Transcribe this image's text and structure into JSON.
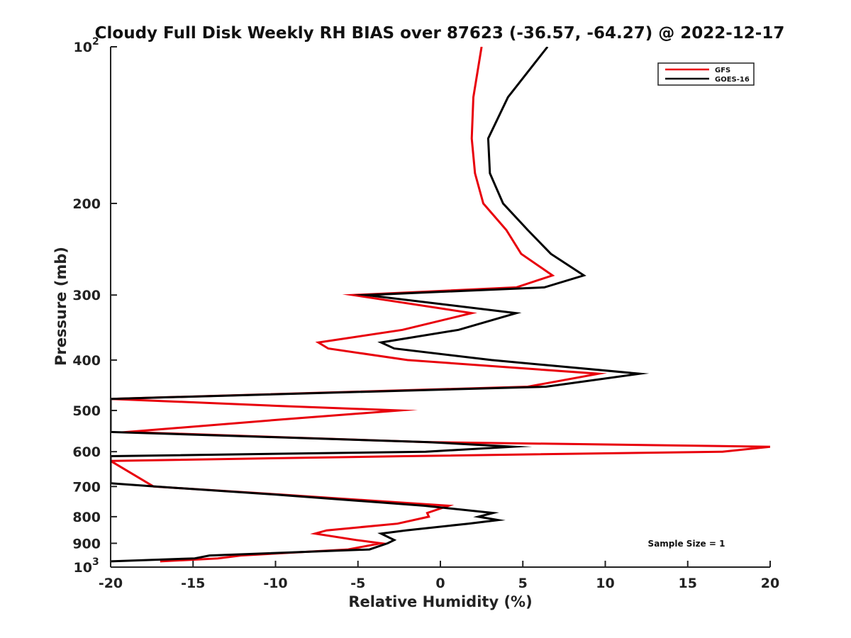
{
  "chart_data": {
    "type": "line",
    "title": "Cloudy Full Disk Weekly RH BIAS over 87623 (-36.57, -64.27) @ 2022-12-17",
    "xlabel": "Relative Humidity (%)",
    "ylabel": "Pressure (mb)",
    "xlim": [
      -20,
      20
    ],
    "ylim": [
      1000,
      100
    ],
    "yscale": "log",
    "grid": false,
    "legend_position": "top-right",
    "x_ticks": [
      -20,
      -15,
      -10,
      -5,
      0,
      5,
      10,
      15,
      20
    ],
    "x_tick_labels": [
      "-20",
      "-15",
      "-10",
      "-5",
      "0",
      "5",
      "10",
      "15",
      "20"
    ],
    "y_ticks": [
      100,
      200,
      300,
      400,
      500,
      600,
      700,
      800,
      900,
      1000
    ],
    "y_tick_labels": [
      {
        "base": "10",
        "exp": "2"
      },
      {
        "base": "200",
        "exp": ""
      },
      {
        "base": "300",
        "exp": ""
      },
      {
        "base": "400",
        "exp": ""
      },
      {
        "base": "500",
        "exp": ""
      },
      {
        "base": "600",
        "exp": ""
      },
      {
        "base": "700",
        "exp": ""
      },
      {
        "base": "800",
        "exp": ""
      },
      {
        "base": "900",
        "exp": ""
      },
      {
        "base": "10",
        "exp": "3"
      }
    ],
    "series": [
      {
        "name": "GFS",
        "color": "#e8000b",
        "points": [
          [
            2.5,
            100
          ],
          [
            2.0,
            125
          ],
          [
            1.9,
            150
          ],
          [
            2.1,
            175
          ],
          [
            2.6,
            200
          ],
          [
            4.0,
            225
          ],
          [
            4.9,
            250
          ],
          [
            6.8,
            275
          ],
          [
            4.6,
            290
          ],
          [
            -5.3,
            300
          ],
          [
            1.9,
            325
          ],
          [
            -2.3,
            350
          ],
          [
            -7.4,
            370
          ],
          [
            -6.8,
            380
          ],
          [
            -2.0,
            400
          ],
          [
            9.6,
            425
          ],
          [
            5.3,
            450
          ],
          [
            -20.0,
            475
          ],
          [
            -9.8,
            490
          ],
          [
            -2.5,
            500
          ],
          [
            -9.5,
            520
          ],
          [
            -19.0,
            550
          ],
          [
            -0.9,
            575
          ],
          [
            20.0,
            587
          ],
          [
            17.1,
            600
          ],
          [
            -2.2,
            612
          ],
          [
            -20.0,
            625
          ],
          [
            -17.4,
            700
          ],
          [
            -9.8,
            725
          ],
          [
            0.5,
            762
          ],
          [
            -0.8,
            787
          ],
          [
            -0.7,
            800
          ],
          [
            -2.6,
            825
          ],
          [
            -6.9,
            850
          ],
          [
            -7.6,
            862
          ],
          [
            -5.1,
            887
          ],
          [
            -3.6,
            900
          ],
          [
            -5.6,
            925
          ],
          [
            -12.1,
            950
          ],
          [
            -13.5,
            962
          ],
          [
            -17.0,
            975
          ]
        ]
      },
      {
        "name": "GOES-16",
        "color": "#000000",
        "points": [
          [
            6.5,
            100
          ],
          [
            4.1,
            125
          ],
          [
            2.9,
            150
          ],
          [
            3.0,
            175
          ],
          [
            3.8,
            200
          ],
          [
            5.3,
            225
          ],
          [
            6.7,
            250
          ],
          [
            8.7,
            275
          ],
          [
            6.3,
            290
          ],
          [
            -4.5,
            300
          ],
          [
            4.6,
            325
          ],
          [
            1.1,
            350
          ],
          [
            -3.6,
            370
          ],
          [
            -2.8,
            380
          ],
          [
            3.1,
            400
          ],
          [
            12.1,
            425
          ],
          [
            6.4,
            450
          ],
          [
            -20.0,
            475
          ],
          [
            -20.0,
            550
          ],
          [
            -0.8,
            575
          ],
          [
            4.4,
            587
          ],
          [
            -0.9,
            600
          ],
          [
            -20.0,
            612
          ],
          [
            -20.0,
            690
          ],
          [
            -17.3,
            700
          ],
          [
            -10.1,
            725
          ],
          [
            -1.0,
            762
          ],
          [
            3.2,
            787
          ],
          [
            2.3,
            800
          ],
          [
            3.5,
            812
          ],
          [
            1.7,
            825
          ],
          [
            -2.1,
            850
          ],
          [
            -3.6,
            862
          ],
          [
            -2.8,
            887
          ],
          [
            -3.2,
            900
          ],
          [
            -4.3,
            925
          ],
          [
            -14.0,
            950
          ],
          [
            -14.9,
            962
          ],
          [
            -20.0,
            975
          ]
        ]
      }
    ],
    "annotations": [
      {
        "text": "Sample Size = 1"
      }
    ]
  }
}
